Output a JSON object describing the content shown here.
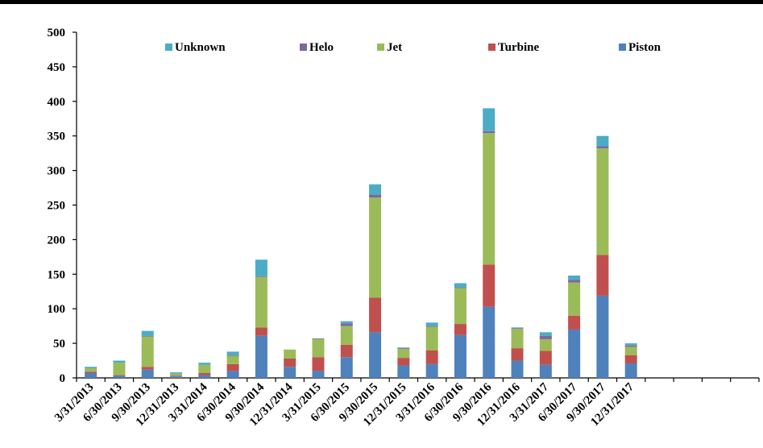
{
  "chart_data": {
    "type": "bar",
    "stacked": true,
    "categories": [
      "3/31/2013",
      "6/30/2013",
      "9/30/2013",
      "12/31/2013",
      "3/31/2014",
      "6/30/2014",
      "9/30/2014",
      "12/31/2014",
      "3/31/2015",
      "6/30/2015",
      "9/30/2015",
      "12/31/2015",
      "3/31/2016",
      "6/30/2016",
      "9/30/2016",
      "12/31/2016",
      "3/31/2017",
      "6/30/2017",
      "9/30/2017",
      "12/31/2017",
      "",
      "",
      "",
      ""
    ],
    "series": [
      {
        "name": "Piston",
        "color": "#4f81bd",
        "values": [
          7,
          3,
          12,
          2,
          4,
          10,
          61,
          16,
          10,
          30,
          66,
          18,
          20,
          62,
          103,
          25,
          19,
          70,
          119,
          21,
          0,
          0,
          0,
          0
        ]
      },
      {
        "name": "Turbine",
        "color": "#c0504d",
        "values": [
          2,
          1,
          4,
          1,
          3,
          10,
          12,
          12,
          20,
          18,
          50,
          11,
          20,
          16,
          61,
          18,
          20,
          20,
          59,
          12,
          0,
          0,
          0,
          0
        ]
      },
      {
        "name": "Jet",
        "color": "#9bbb59",
        "values": [
          5,
          18,
          44,
          3,
          12,
          12,
          73,
          13,
          26,
          27,
          145,
          13,
          34,
          52,
          190,
          28,
          17,
          48,
          154,
          12,
          0,
          0,
          0,
          0
        ]
      },
      {
        "name": "Helo",
        "color": "#8064a2",
        "values": [
          0,
          0,
          1,
          0,
          0,
          1,
          1,
          0,
          1,
          4,
          4,
          1,
          1,
          1,
          3,
          1,
          5,
          4,
          3,
          2,
          0,
          0,
          0,
          0
        ]
      },
      {
        "name": "Unknown",
        "color": "#4bacc6",
        "values": [
          2,
          3,
          7,
          2,
          3,
          5,
          24,
          0,
          0,
          3,
          15,
          1,
          5,
          6,
          33,
          1,
          5,
          6,
          15,
          3,
          0,
          0,
          0,
          0
        ]
      }
    ],
    "yticks": [
      "0",
      "50",
      "100",
      "150",
      "200",
      "250",
      "300",
      "350",
      "400",
      "450",
      "500"
    ],
    "ylim": [
      0,
      500
    ],
    "grid": false,
    "legend": {
      "position": "top",
      "items": [
        {
          "name": "Unknown",
          "color": "#4bacc6"
        },
        {
          "name": "Helo",
          "color": "#8064a2"
        },
        {
          "name": "Jet",
          "color": "#9bbb59"
        },
        {
          "name": "Turbine",
          "color": "#c0504d"
        },
        {
          "name": "Piston",
          "color": "#4f81bd"
        }
      ]
    }
  }
}
